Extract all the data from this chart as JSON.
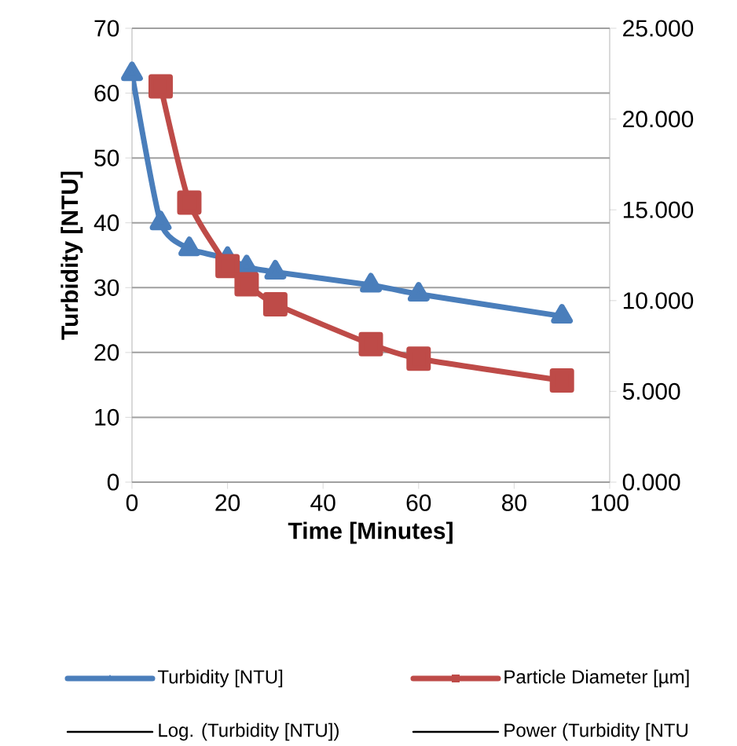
{
  "chart_data": {
    "type": "line",
    "xlabel": "Time [Minutes]",
    "ylabel": "Turbidity [NTU]",
    "x": [
      0,
      6,
      12,
      20,
      24,
      30,
      50,
      60,
      90
    ],
    "series": [
      {
        "name": "Turbidity [NTU]",
        "color": "#4a7ebb",
        "marker": "triangle",
        "values": [
          63,
          40,
          36,
          34.5,
          33.2,
          32.4,
          30.4,
          29.0,
          25.6
        ]
      },
      {
        "name": "Particle Diameter [µm]",
        "color": "#be4b48",
        "marker": "square",
        "axis": "y2",
        "values": [
          null,
          21.8,
          15.4,
          11.9,
          10.9,
          9.8,
          7.6,
          6.8,
          5.6
        ]
      },
      {
        "name": "Log. (Turbidity [NTU])",
        "color": "#000000",
        "marker": "none",
        "values": [
          null,
          null,
          null,
          null,
          null,
          null,
          null,
          null,
          null
        ]
      },
      {
        "name": "Power (Turbidity [NTU",
        "color": "#000000",
        "marker": "none",
        "values": [
          null,
          null,
          null,
          null,
          null,
          null,
          null,
          null,
          null
        ]
      }
    ],
    "xlim": [
      0,
      100
    ],
    "xticks": [
      0,
      20,
      40,
      60,
      80,
      100
    ],
    "ylim": [
      0,
      70
    ],
    "yticks": [
      0,
      10,
      20,
      30,
      40,
      50,
      60,
      70
    ],
    "y2lim": [
      0,
      25
    ],
    "y2ticks": [
      {
        "value": 0,
        "label": "0.000"
      },
      {
        "value": 5,
        "label": "5.000"
      },
      {
        "value": 10,
        "label": "10.000"
      },
      {
        "value": 15,
        "label": "15.000"
      },
      {
        "value": 20,
        "label": "20.000"
      },
      {
        "value": 25,
        "label": "25.000"
      }
    ],
    "grid": "y",
    "legend": "bottom",
    "line_style": "solid"
  }
}
